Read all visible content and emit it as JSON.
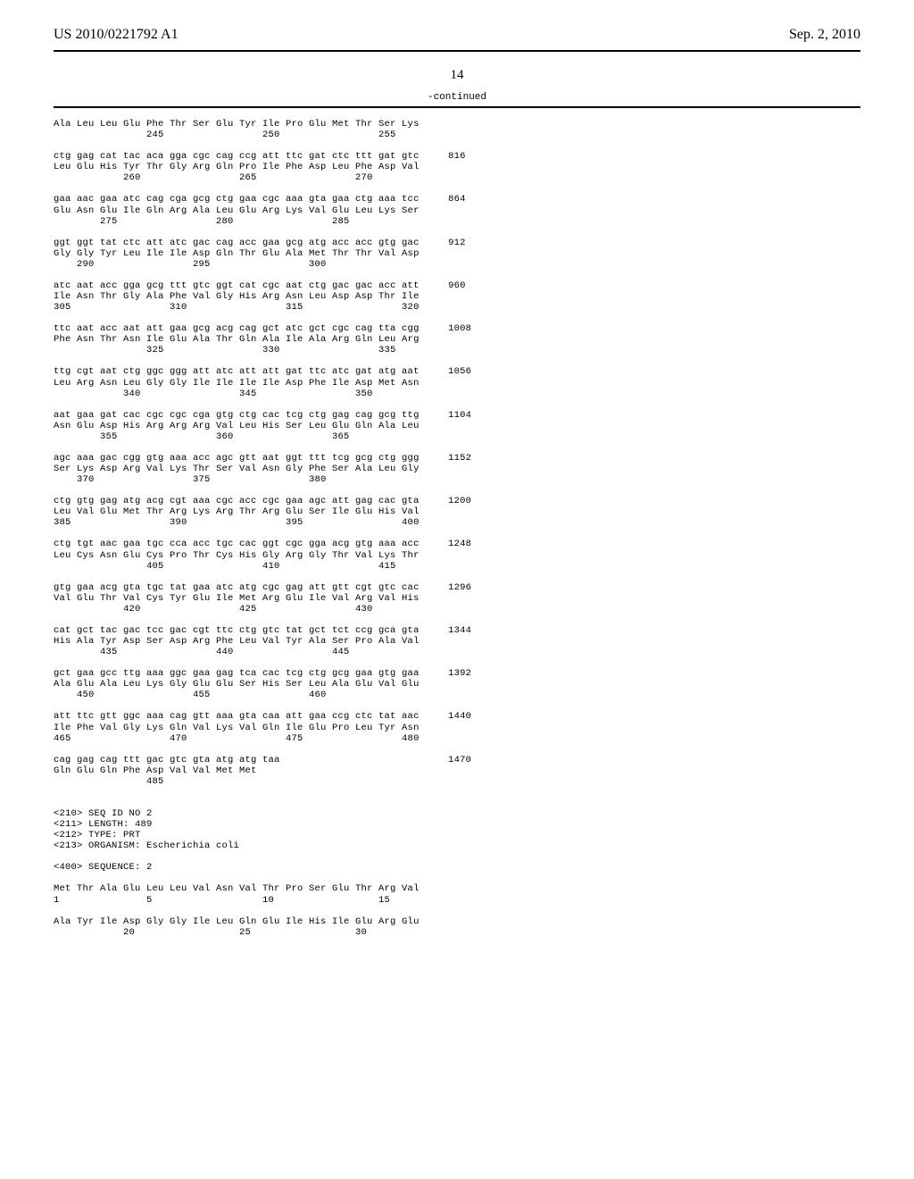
{
  "header": {
    "pub_number": "US 2010/0221792 A1",
    "pub_date": "Sep. 2, 2010"
  },
  "page_number": "14",
  "continued_label": "-continued",
  "sequences": [
    {
      "protein": "Ala Leu Leu Glu Phe Thr Ser Glu Tyr Ile Pro Glu Met Thr Ser Lys",
      "positions": "                245                 250                 255",
      "num": ""
    },
    {
      "dna": "ctg gag cat tac aca gga cgc cag ccg att ttc gat ctc ttt gat gtc",
      "protein": "Leu Glu His Tyr Thr Gly Arg Gln Pro Ile Phe Asp Leu Phe Asp Val",
      "positions": "            260                 265                 270",
      "num": "816"
    },
    {
      "dna": "gaa aac gaa atc cag cga gcg ctg gaa cgc aaa gta gaa ctg aaa tcc",
      "protein": "Glu Asn Glu Ile Gln Arg Ala Leu Glu Arg Lys Val Glu Leu Lys Ser",
      "positions": "        275                 280                 285",
      "num": "864"
    },
    {
      "dna": "ggt ggt tat ctc att atc gac cag acc gaa gcg atg acc acc gtg gac",
      "protein": "Gly Gly Tyr Leu Ile Ile Asp Gln Thr Glu Ala Met Thr Thr Val Asp",
      "positions": "    290                 295                 300",
      "num": "912"
    },
    {
      "dna": "atc aat acc gga gcg ttt gtc ggt cat cgc aat ctg gac gac acc att",
      "protein": "Ile Asn Thr Gly Ala Phe Val Gly His Arg Asn Leu Asp Asp Thr Ile",
      "positions": "305                 310                 315                 320",
      "num": "960"
    },
    {
      "dna": "ttc aat acc aat att gaa gcg acg cag gct atc gct cgc cag tta cgg",
      "protein": "Phe Asn Thr Asn Ile Glu Ala Thr Gln Ala Ile Ala Arg Gln Leu Arg",
      "positions": "                325                 330                 335",
      "num": "1008"
    },
    {
      "dna": "ttg cgt aat ctg ggc ggg att atc att att gat ttc atc gat atg aat",
      "protein": "Leu Arg Asn Leu Gly Gly Ile Ile Ile Ile Asp Phe Ile Asp Met Asn",
      "positions": "            340                 345                 350",
      "num": "1056"
    },
    {
      "dna": "aat gaa gat cac cgc cgc cga gtg ctg cac tcg ctg gag cag gcg ttg",
      "protein": "Asn Glu Asp His Arg Arg Arg Val Leu His Ser Leu Glu Gln Ala Leu",
      "positions": "        355                 360                 365",
      "num": "1104"
    },
    {
      "dna": "agc aaa gac cgg gtg aaa acc agc gtt aat ggt ttt tcg gcg ctg ggg",
      "protein": "Ser Lys Asp Arg Val Lys Thr Ser Val Asn Gly Phe Ser Ala Leu Gly",
      "positions": "    370                 375                 380",
      "num": "1152"
    },
    {
      "dna": "ctg gtg gag atg acg cgt aaa cgc acc cgc gaa agc att gag cac gta",
      "protein": "Leu Val Glu Met Thr Arg Lys Arg Thr Arg Glu Ser Ile Glu His Val",
      "positions": "385                 390                 395                 400",
      "num": "1200"
    },
    {
      "dna": "ctg tgt aac gaa tgc cca acc tgc cac ggt cgc gga acg gtg aaa acc",
      "protein": "Leu Cys Asn Glu Cys Pro Thr Cys His Gly Arg Gly Thr Val Lys Thr",
      "positions": "                405                 410                 415",
      "num": "1248"
    },
    {
      "dna": "gtg gaa acg gta tgc tat gaa atc atg cgc gag att gtt cgt gtc cac",
      "protein": "Val Glu Thr Val Cys Tyr Glu Ile Met Arg Glu Ile Val Arg Val His",
      "positions": "            420                 425                 430",
      "num": "1296"
    },
    {
      "dna": "cat gct tac gac tcc gac cgt ttc ctg gtc tat gct tct ccg gca gta",
      "protein": "His Ala Tyr Asp Ser Asp Arg Phe Leu Val Tyr Ala Ser Pro Ala Val",
      "positions": "        435                 440                 445",
      "num": "1344"
    },
    {
      "dna": "gct gaa gcc ttg aaa ggc gaa gag tca cac tcg ctg gcg gaa gtg gaa",
      "protein": "Ala Glu Ala Leu Lys Gly Glu Glu Ser His Ser Leu Ala Glu Val Glu",
      "positions": "    450                 455                 460",
      "num": "1392"
    },
    {
      "dna": "att ttc gtt ggc aaa cag gtt aaa gta caa att gaa ccg ctc tat aac",
      "protein": "Ile Phe Val Gly Lys Gln Val Lys Val Gln Ile Glu Pro Leu Tyr Asn",
      "positions": "465                 470                 475                 480",
      "num": "1440"
    },
    {
      "dna": "cag gag cag ttt gac gtc gta atg atg taa",
      "protein": "Gln Glu Gln Phe Asp Val Val Met Met",
      "positions": "                485",
      "num": "1470"
    }
  ],
  "seq_info": {
    "seq_id": "<210> SEQ ID NO 2",
    "length": "<211> LENGTH: 489",
    "type": "<212> TYPE: PRT",
    "organism": "<213> ORGANISM: Escherichia coli",
    "sequence": "<400> SEQUENCE: 2"
  },
  "protein_seq": [
    {
      "protein": "Met Thr Ala Glu Leu Leu Val Asn Val Thr Pro Ser Glu Thr Arg Val",
      "positions": "1               5                   10                  15"
    },
    {
      "protein": "Ala Tyr Ile Asp Gly Gly Ile Leu Gln Glu Ile His Ile Glu Arg Glu",
      "positions": "            20                  25                  30"
    }
  ]
}
